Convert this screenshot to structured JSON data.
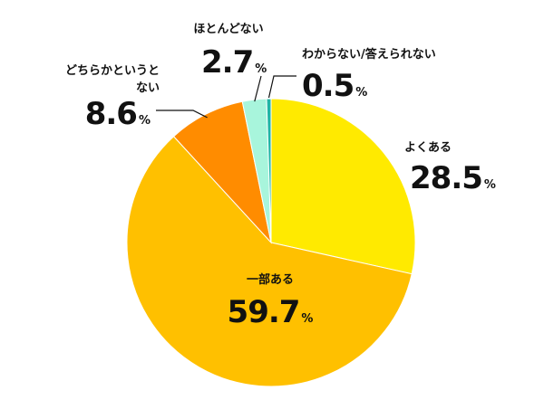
{
  "chart_data": {
    "type": "pie",
    "slices": [
      {
        "label": "よくある",
        "value": 28.5,
        "value_text": "28.5",
        "color": "#FFEA00"
      },
      {
        "label": "一部ある",
        "value": 59.7,
        "value_text": "59.7",
        "color": "#FFC000"
      },
      {
        "label_lines": [
          "どちらかというと",
          "ない"
        ],
        "value": 8.6,
        "value_text": "8.6",
        "color": "#FF8C00"
      },
      {
        "label": "ほとんどない",
        "value": 2.7,
        "value_text": "2.7",
        "color": "#A8F5DC"
      },
      {
        "label": "わからない/答えられない",
        "value": 0.5,
        "value_text": "0.5",
        "color": "#1FB5A5"
      }
    ],
    "unit": "%",
    "start_angle": "12 o'clock",
    "direction": "clockwise",
    "legend": "none"
  }
}
